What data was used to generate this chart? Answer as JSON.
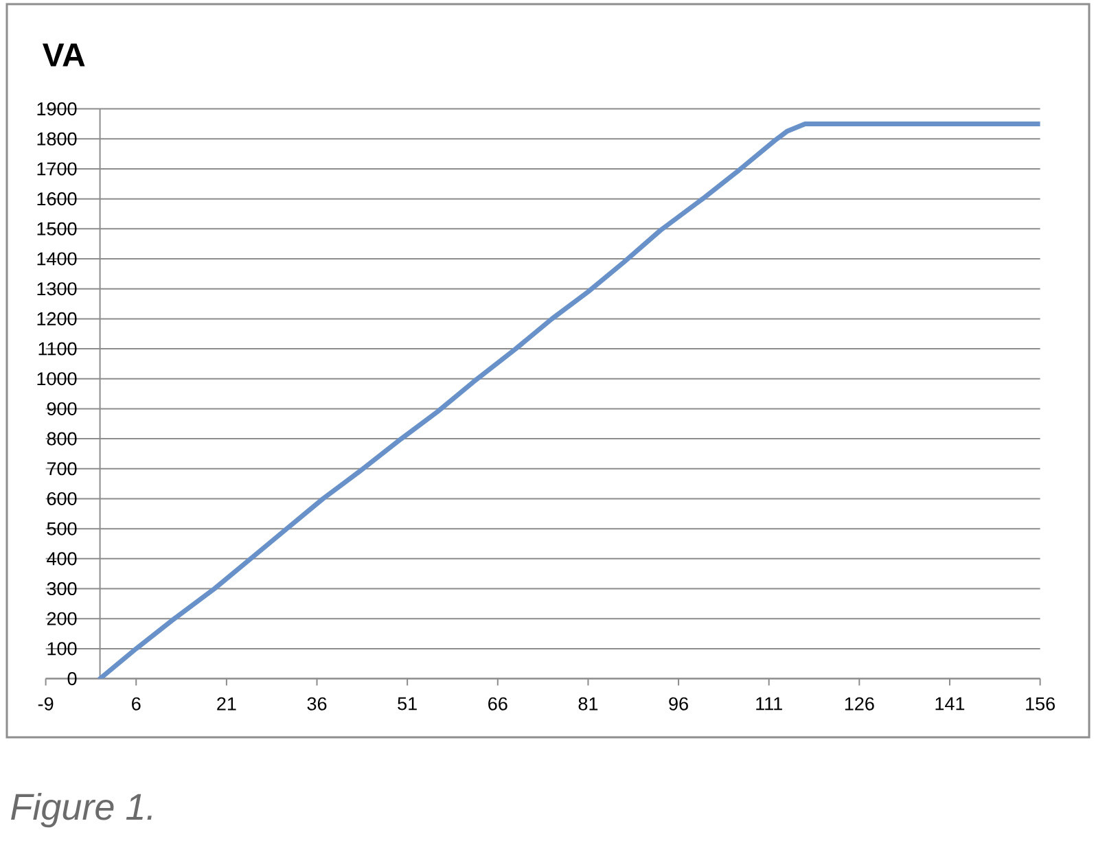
{
  "chart_data": {
    "type": "line",
    "ylabel": "VA",
    "annotations": [
      "Figure 1."
    ],
    "x": [
      0,
      6,
      12,
      19,
      25,
      31,
      37,
      43,
      50,
      56,
      62,
      69,
      75,
      81,
      87,
      93,
      100,
      106,
      112,
      114,
      117,
      156
    ],
    "values": [
      0,
      100,
      195,
      300,
      400,
      500,
      600,
      690,
      800,
      890,
      990,
      1100,
      1200,
      1290,
      1390,
      1495,
      1600,
      1695,
      1795,
      1825,
      1850,
      1850
    ],
    "color": "#6891c9",
    "line_style": "solid",
    "xlim": [
      -9,
      156
    ],
    "xticks": [
      -9,
      6,
      21,
      36,
      51,
      66,
      81,
      96,
      111,
      126,
      141,
      156
    ],
    "ylim": [
      0,
      1900
    ],
    "yticks": [
      0,
      100,
      200,
      300,
      400,
      500,
      600,
      700,
      800,
      900,
      1000,
      1100,
      1200,
      1300,
      1400,
      1500,
      1600,
      1700,
      1800,
      1900
    ],
    "grid": "y"
  }
}
